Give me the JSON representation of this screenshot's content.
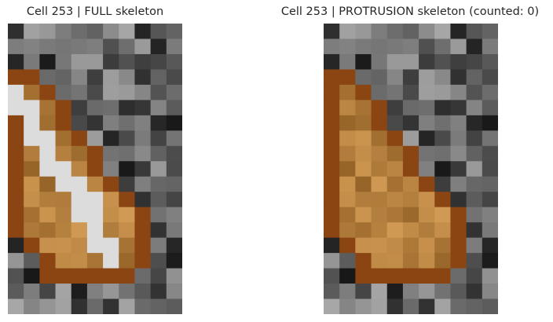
{
  "figure": {
    "panels": [
      {
        "title": "Cell 253 | FULL skeleton"
      },
      {
        "title": "Cell 253 | PROTRUSION skeleton (counted: 0)"
      }
    ]
  },
  "colors": {
    "background": "#ffffff",
    "title_text": "#262626",
    "cell_boundary": "#8b4513",
    "cell_fill": "#b08040",
    "skeleton": "#dcdcdc"
  }
}
